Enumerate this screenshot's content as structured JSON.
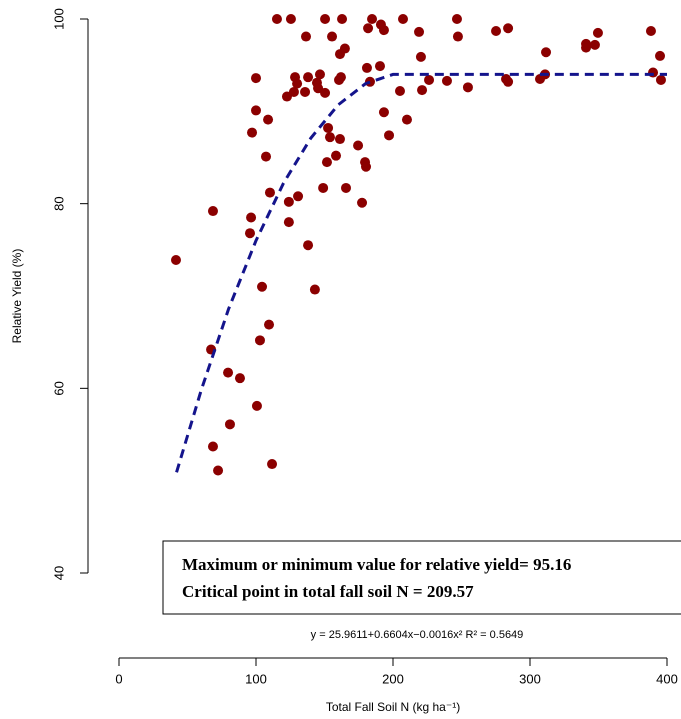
{
  "chart_data": {
    "type": "scatter",
    "y_label": "Relative Yield (%)",
    "x_label": "Total Fall Soil N (kg ha⁻¹)",
    "annotations": [
      "Maximum or minimum value for relative yield= 95.16",
      "Critical point in total fall soil N = 209.57"
    ],
    "equation": "y = 25.9611+0.6604x−0.0016x²  R² = 0.5649",
    "xlim": [
      0,
      400
    ],
    "xticks": [
      0,
      100,
      200,
      300,
      400
    ],
    "ylim": [
      40,
      100
    ],
    "yticks": [
      40,
      60,
      80,
      100
    ],
    "series": [
      {
        "type": "scatter",
        "color": "#8b0000",
        "x": [
          41.6,
          68.6,
          67.2,
          79.6,
          88.3,
          81.0,
          68.6,
          72.3,
          111.7,
          100.7,
          102.9,
          104.4,
          109.5,
          95.6,
          96.4,
          110.2,
          107.3,
          97.1,
          100,
          100,
          108.8,
          115.3,
          125.5,
          122.6,
          124,
          124,
          130.7,
          127.7,
          128.5,
          130,
          136.5,
          135.8,
          138,
          138,
          143,
          144.5,
          146.7,
          145.3,
          150.4,
          150.4,
          149,
          152.6,
          154,
          151.8,
          155.5,
          158.4,
          161.3,
          160.6,
          162,
          161.3,
          164.9,
          162.8,
          165.7,
          174.5,
          177.4,
          179.6,
          180.3,
          181,
          181.8,
          184.7,
          183.2,
          190.5,
          191.2,
          193.4,
          193.4,
          197.1,
          205.1,
          207.3,
          210.2,
          219,
          220.4,
          221.2,
          226.3,
          239.4,
          246.7,
          247.4,
          254.7,
          275.2,
          284,
          282.5,
          284,
          307.3,
          311,
          311.7,
          340.9,
          340.9,
          347.4,
          349.6,
          388.3,
          389.8,
          394.9,
          395.6
        ],
        "values": [
          73.9,
          79.2,
          64.2,
          61.7,
          61.1,
          56.1,
          53.7,
          51.1,
          51.8,
          58.1,
          65.2,
          71.0,
          66.9,
          76.8,
          78.5,
          81.2,
          85.1,
          87.7,
          90.1,
          93.6,
          89.1,
          100,
          100,
          91.6,
          80.2,
          78.0,
          80.8,
          92.1,
          93.7,
          93.0,
          98.1,
          92.1,
          93.7,
          75.5,
          70.7,
          93.1,
          94.0,
          92.5,
          100,
          92.0,
          81.7,
          88.2,
          87.2,
          84.5,
          98.1,
          85.2,
          87.0,
          93.4,
          93.7,
          96.2,
          96.8,
          100,
          81.7,
          86.3,
          80.1,
          84.5,
          84.0,
          94.7,
          99.0,
          100,
          93.2,
          94.9,
          99.4,
          98.8,
          89.9,
          87.4,
          92.2,
          100,
          89.1,
          98.6,
          95.9,
          92.3,
          93.4,
          93.3,
          100,
          98.1,
          92.6,
          98.7,
          99.0,
          93.5,
          93.2,
          93.5,
          94.0,
          96.4,
          96.9,
          97.3,
          97.2,
          98.5,
          98.7,
          94.2,
          96.0,
          93.4
        ]
      },
      {
        "type": "line",
        "color": "#14148c",
        "dashed": true,
        "x": [
          42,
          60,
          80,
          100,
          120,
          140,
          160,
          180,
          200,
          400
        ],
        "values": [
          50.9,
          59.8,
          68.6,
          76.0,
          82.2,
          87.1,
          90.7,
          93.0,
          94.0,
          94.0
        ]
      }
    ]
  }
}
